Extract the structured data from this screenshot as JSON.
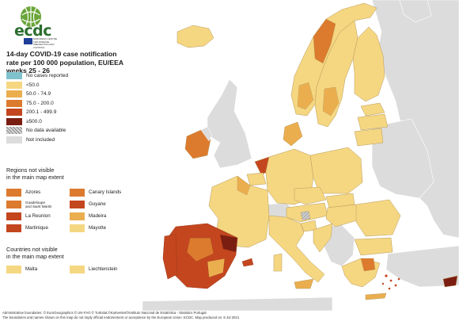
{
  "logo": {
    "text": "ecdc",
    "subtitle": "EUROPEAN CENTRE FOR DISEASE PREVENTION AND CONTROL"
  },
  "title": {
    "line1": "14-day COVID-19 case notification",
    "line2": "rate per 100 000 population, EU/EEA",
    "line3": "weeks 25 - 26"
  },
  "legend": {
    "items": [
      {
        "label": "No cases reported",
        "color": "#7fc2cc",
        "pattern": "solid"
      },
      {
        "label": "<50.0",
        "color": "#f5d782",
        "pattern": "solid"
      },
      {
        "label": "50.0 - 74.9",
        "color": "#ebae4f",
        "pattern": "solid"
      },
      {
        "label": "75.0 - 200.0",
        "color": "#dc7a2e",
        "pattern": "solid"
      },
      {
        "label": "200.1 - 499.9",
        "color": "#c4461f",
        "pattern": "solid"
      },
      {
        "label": "≥500.0",
        "color": "#7b1e12",
        "pattern": "solid"
      },
      {
        "label": "No data available",
        "color": "#b5b5b5",
        "pattern": "hatch"
      },
      {
        "label": "Not included",
        "color": "#dcdcdc",
        "pattern": "solid"
      }
    ]
  },
  "regions_section": {
    "title_line1": "Regions not visible",
    "title_line2": "in the main map extent",
    "items": [
      {
        "label": "Azores",
        "color": "#dc7a2e",
        "small": false
      },
      {
        "label": "Canary Islands",
        "color": "#dc7a2e",
        "small": false
      },
      {
        "label": "Guadeloupe",
        "label2": "and Saint Martin",
        "color": "#dc7a2e",
        "small": true
      },
      {
        "label": "Guyane",
        "color": "#c4461f",
        "small": false
      },
      {
        "label": "La Reunion",
        "color": "#c4461f",
        "small": false
      },
      {
        "label": "Madeira",
        "color": "#ebae4f",
        "small": false
      },
      {
        "label": "Martinique",
        "color": "#c4461f",
        "small": false
      },
      {
        "label": "Mayotte",
        "color": "#f5d782",
        "small": false
      }
    ]
  },
  "countries_section": {
    "title_line1": "Countries not visible",
    "title_line2": "in the main map extent",
    "items": [
      {
        "label": "Malta",
        "color": "#f5d782"
      },
      {
        "label": "Liechtenstein",
        "color": "#f5d782"
      }
    ]
  },
  "footer": {
    "line1": "Administrative boundaries: © EuroGeographics © UN-FAO © Turkstat.©Kartverket©Instituto Nacional de Estatística - Statistics Portugal.",
    "line2": "The boundaries and names shown on this map do not imply official endorsement or acceptance by the European Union. ECDC. Map produced on: 8 Jul 2021"
  },
  "map_colors": {
    "sea": "#ffffff",
    "not_included": "#dcdcdc",
    "low": "#f5d782",
    "mid_low": "#ebae4f",
    "mid": "#dc7a2e",
    "high": "#c4461f",
    "very_high": "#7b1e12",
    "border": "#b89a5a"
  }
}
